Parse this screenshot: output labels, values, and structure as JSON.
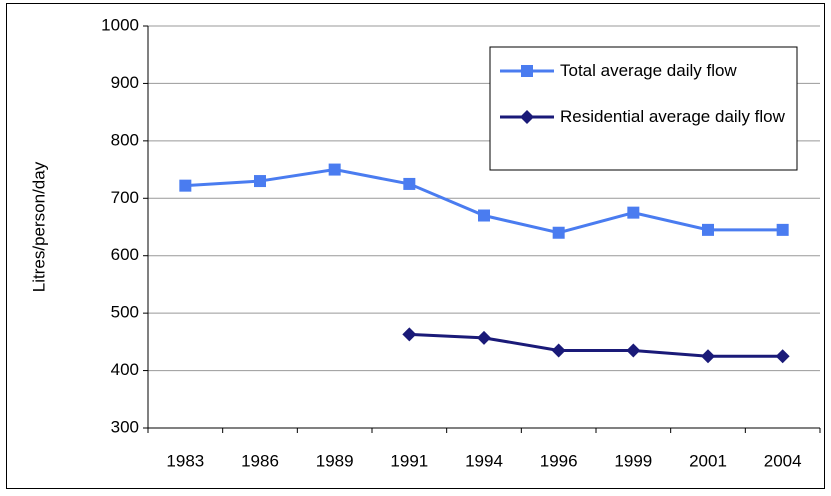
{
  "chart_data": {
    "type": "line",
    "y_label": "Litres/person/day",
    "categories": [
      "1983",
      "1986",
      "1989",
      "1991",
      "1994",
      "1996",
      "1999",
      "2001",
      "2004"
    ],
    "series": [
      {
        "name": "Total average daily flow",
        "color": "#4a7cf0",
        "marker": "square",
        "values": [
          722,
          730,
          750,
          725,
          670,
          640,
          675,
          645,
          645
        ]
      },
      {
        "name": "Residential average daily flow",
        "color": "#1a1a78",
        "marker": "diamond",
        "values": [
          null,
          null,
          null,
          463,
          457,
          435,
          435,
          425,
          425
        ]
      }
    ],
    "ylim": [
      300,
      1000
    ],
    "yticks": [
      300,
      400,
      500,
      600,
      700,
      800,
      900,
      1000
    ],
    "grid": true,
    "legend": "upper right"
  }
}
